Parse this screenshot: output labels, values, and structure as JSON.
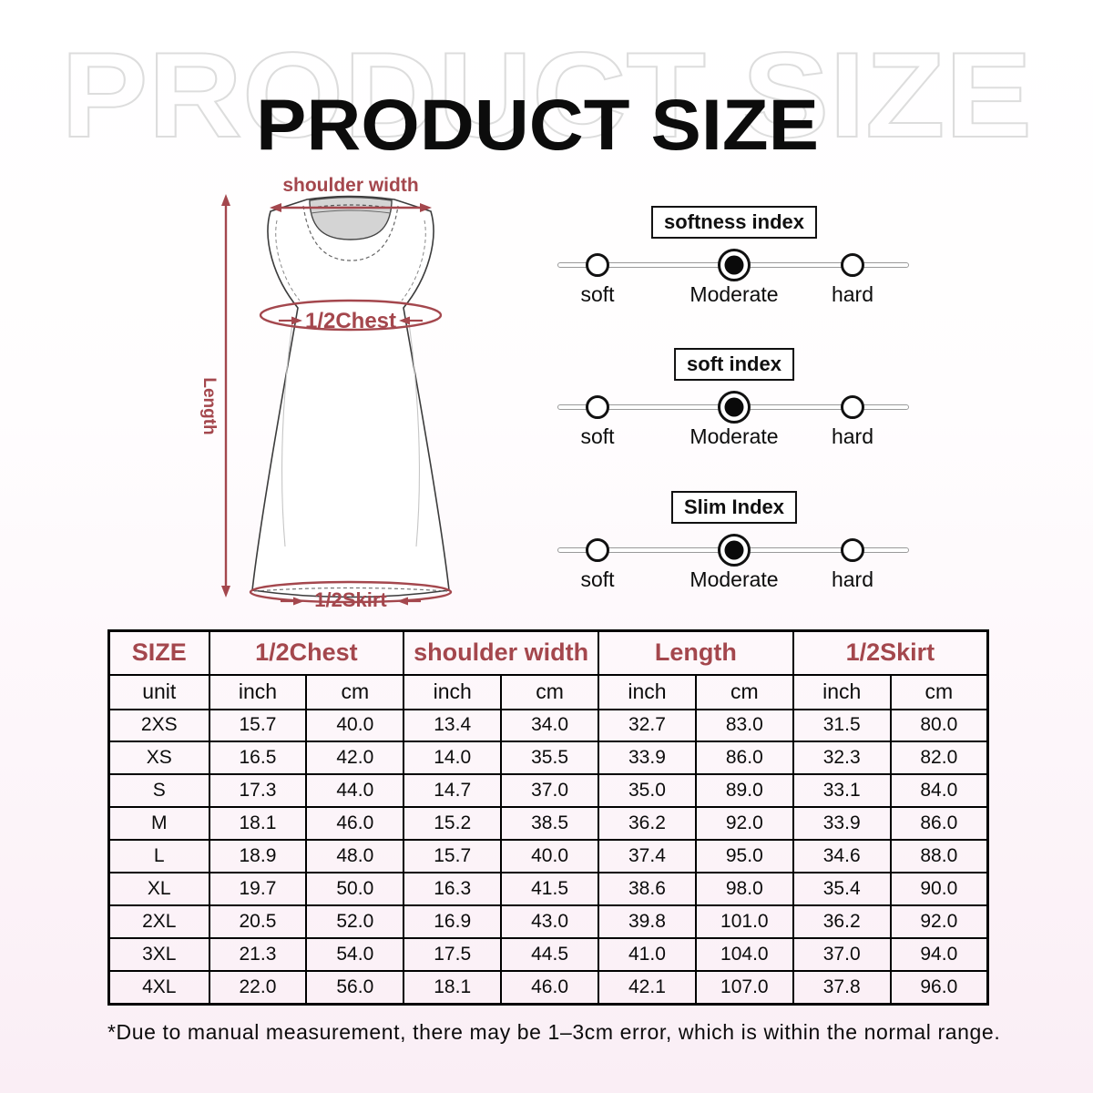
{
  "title": {
    "main": "PRODUCT SIZE",
    "ghost": "PRODUCT SIZE"
  },
  "diagram": {
    "labels": {
      "shoulder_width": "shoulder width",
      "half_chest": "1/2Chest",
      "length": "Length",
      "half_skirt": "1/2Skirt"
    },
    "annotation_color": "#A4474D"
  },
  "sliders": [
    {
      "title": "softness index",
      "options": [
        "soft",
        "Moderate",
        "hard"
      ],
      "selected": "Moderate"
    },
    {
      "title": "soft index",
      "options": [
        "soft",
        "Moderate",
        "hard"
      ],
      "selected": "Moderate"
    },
    {
      "title": "Slim Index",
      "options": [
        "soft",
        "Moderate",
        "hard"
      ],
      "selected": "Moderate"
    }
  ],
  "table": {
    "size_label": "SIZE",
    "unit_label": "unit",
    "groups": [
      "1/2Chest",
      "shoulder width",
      "Length",
      "1/2Skirt"
    ],
    "units": [
      "inch",
      "cm",
      "inch",
      "cm",
      "inch",
      "cm",
      "inch",
      "cm"
    ],
    "rows": [
      {
        "size": "2XS",
        "values": [
          "15.7",
          "40.0",
          "13.4",
          "34.0",
          "32.7",
          "83.0",
          "31.5",
          "80.0"
        ]
      },
      {
        "size": "XS",
        "values": [
          "16.5",
          "42.0",
          "14.0",
          "35.5",
          "33.9",
          "86.0",
          "32.3",
          "82.0"
        ]
      },
      {
        "size": "S",
        "values": [
          "17.3",
          "44.0",
          "14.7",
          "37.0",
          "35.0",
          "89.0",
          "33.1",
          "84.0"
        ]
      },
      {
        "size": "M",
        "values": [
          "18.1",
          "46.0",
          "15.2",
          "38.5",
          "36.2",
          "92.0",
          "33.9",
          "86.0"
        ]
      },
      {
        "size": "L",
        "values": [
          "18.9",
          "48.0",
          "15.7",
          "40.0",
          "37.4",
          "95.0",
          "34.6",
          "88.0"
        ]
      },
      {
        "size": "XL",
        "values": [
          "19.7",
          "50.0",
          "16.3",
          "41.5",
          "38.6",
          "98.0",
          "35.4",
          "90.0"
        ]
      },
      {
        "size": "2XL",
        "values": [
          "20.5",
          "52.0",
          "16.9",
          "43.0",
          "39.8",
          "101.0",
          "36.2",
          "92.0"
        ]
      },
      {
        "size": "3XL",
        "values": [
          "21.3",
          "54.0",
          "17.5",
          "44.5",
          "41.0",
          "104.0",
          "37.0",
          "94.0"
        ]
      },
      {
        "size": "4XL",
        "values": [
          "22.0",
          "56.0",
          "18.1",
          "46.0",
          "42.1",
          "107.0",
          "37.8",
          "96.0"
        ]
      }
    ]
  },
  "footnote": "*Due to manual measurement, there may be 1–3cm error, which is within the normal range.",
  "colors": {
    "accent": "#A4474D",
    "table_border": "#000000",
    "ghost_outline": "#dddddd"
  }
}
